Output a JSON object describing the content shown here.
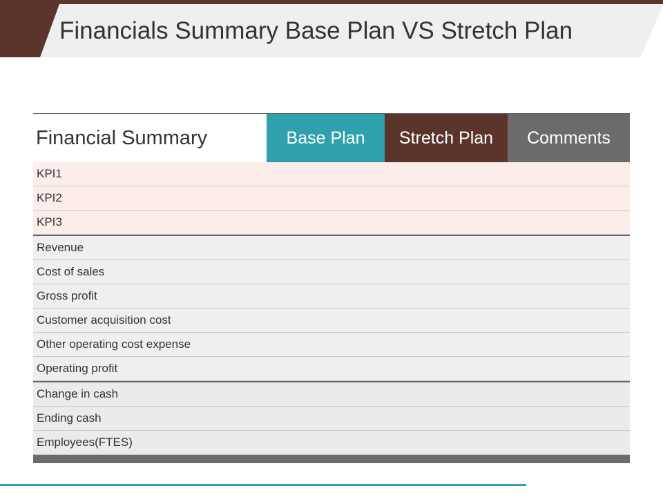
{
  "slide": {
    "title": "Financials Summary Base Plan VS Stretch Plan"
  },
  "table": {
    "headers": {
      "label": "Financial Summary",
      "base": "Base Plan",
      "stretch": "Stretch Plan",
      "comments": "Comments"
    },
    "groups": [
      {
        "rows": [
          "KPI1",
          "KPI2",
          "KPI3"
        ]
      },
      {
        "rows": [
          "Revenue",
          "Cost of sales",
          "Gross profit",
          "Customer acquisition cost",
          "Other operating cost expense",
          "Operating profit"
        ]
      },
      {
        "rows": [
          "Change in cash",
          "Ending cash",
          "Employees(FTES)"
        ]
      }
    ]
  },
  "colors": {
    "brown": "#5b342c",
    "teal": "#2ea1ad",
    "gray": "#6b6b6b",
    "kpi_row": "#fcecea",
    "ops_row": "#efeff2",
    "cash_row": "#ebebeb"
  }
}
